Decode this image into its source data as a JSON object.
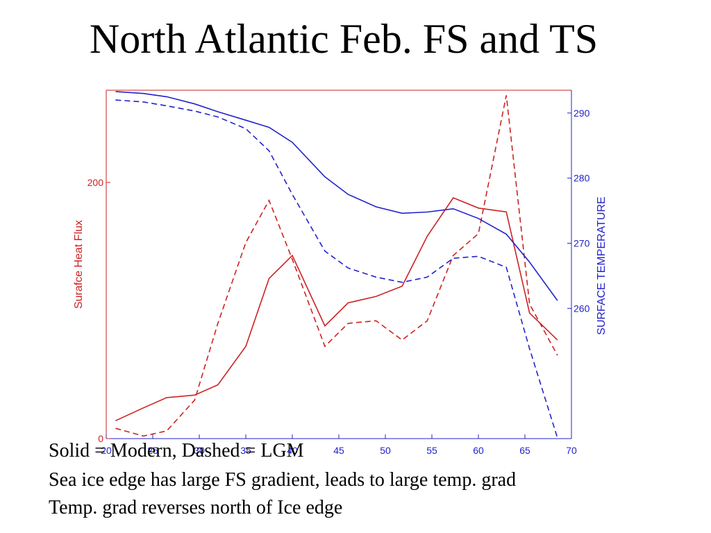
{
  "slide": {
    "title": "North Atlantic Feb. FS and TS",
    "captions": [
      "Solid = Modern, Dashed = LGM",
      "Sea ice edge has large FS gradient, leads to large temp. grad",
      "Temp. grad reverses north of Ice edge"
    ]
  },
  "chart_data": {
    "type": "line",
    "x_ticks": [
      20,
      25,
      30,
      35,
      40,
      45,
      50,
      55,
      60,
      65,
      70
    ],
    "xlim": [
      20,
      70
    ],
    "left_axis": {
      "label": "Surafce Heat Flux",
      "ticks": [
        0,
        200
      ],
      "ylim": [
        0,
        272
      ],
      "color": "#cc2222"
    },
    "right_axis": {
      "label": "SURFACE TEMPERATURE",
      "ticks": [
        260,
        270,
        280,
        290
      ],
      "ylim": [
        240,
        293.5
      ],
      "color": "#2222cc"
    },
    "series": [
      {
        "name": "Modern",
        "axis": "left",
        "style": "solid",
        "color": "#cc2222",
        "x": [
          21,
          24,
          26.5,
          29.5,
          32,
          35,
          37.5,
          40,
          43.5,
          46,
          49,
          51.8,
          54.5,
          57.3,
          60,
          63,
          65.5,
          68.5
        ],
        "y": [
          14,
          24,
          32,
          34,
          42,
          72,
          125,
          143,
          88,
          106,
          111,
          119,
          158,
          188,
          180,
          177,
          98,
          77
        ]
      },
      {
        "name": "LGM",
        "axis": "left",
        "style": "dashed",
        "color": "#cc2222",
        "x": [
          21,
          24,
          26.5,
          29.5,
          32,
          35,
          37.5,
          40,
          43.5,
          46,
          49,
          51.8,
          54.5,
          57.3,
          60,
          63,
          65.5,
          68.5
        ],
        "y": [
          8,
          2,
          6,
          30,
          90,
          153,
          186,
          140,
          72,
          90,
          92,
          77,
          92,
          143,
          160,
          268,
          105,
          65
        ]
      },
      {
        "name": "Modern",
        "axis": "right",
        "style": "solid",
        "color": "#2222cc",
        "x": [
          21,
          24,
          26.5,
          29.5,
          32,
          35,
          37.5,
          40,
          43.5,
          46,
          49,
          51.8,
          54.5,
          57.3,
          60,
          63,
          65.5,
          68.5
        ],
        "y": [
          293.3,
          293,
          292.5,
          291.4,
          290.2,
          288.9,
          287.8,
          285.5,
          280.2,
          277.5,
          275.6,
          274.6,
          274.8,
          275.3,
          273.8,
          271.4,
          267.1,
          261.2
        ]
      },
      {
        "name": "LGM",
        "axis": "right",
        "style": "dashed",
        "color": "#2222cc",
        "x": [
          21,
          24,
          26.5,
          29.5,
          32,
          35,
          37.5,
          40,
          43.5,
          46,
          49,
          51.8,
          54.5,
          57.3,
          60,
          63,
          65.5,
          68.5
        ],
        "y": [
          292,
          291.7,
          291.1,
          290.3,
          289.4,
          287.6,
          284.2,
          277.5,
          268.8,
          266.2,
          264.8,
          264,
          264.8,
          267.7,
          268,
          266.3,
          253.8,
          240.1
        ]
      }
    ],
    "grid": false,
    "legend": "none"
  }
}
